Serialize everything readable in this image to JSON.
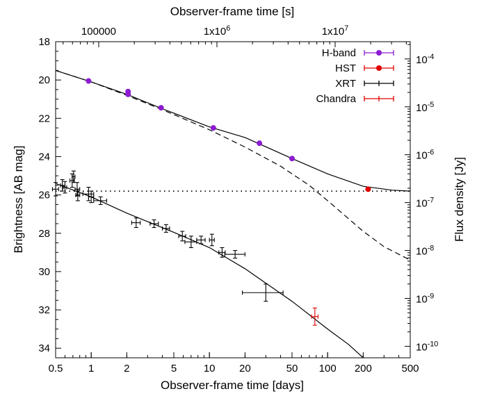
{
  "chart_data": {
    "type": "scatter",
    "top_axis_label": "Observer-frame time [s]",
    "xlabel": "Observer-frame time [days]",
    "ylabel": "Brightness [AB mag]",
    "y2label": "Flux density [Jy]",
    "xscale": "log",
    "xlim": [
      0.5,
      500
    ],
    "ylim": [
      34.5,
      18
    ],
    "x_ticks": [
      {
        "v": 0.5,
        "label": "0.5"
      },
      {
        "v": 1,
        "label": "1"
      },
      {
        "v": 2,
        "label": "2"
      },
      {
        "v": 5,
        "label": "5"
      },
      {
        "v": 10,
        "label": "10"
      },
      {
        "v": 20,
        "label": "20"
      },
      {
        "v": 50,
        "label": "50"
      },
      {
        "v": 100,
        "label": "100"
      },
      {
        "v": 200,
        "label": "200"
      },
      {
        "v": 500,
        "label": "500"
      }
    ],
    "top_ticks": [
      {
        "v": 100000,
        "label": "100000"
      },
      {
        "v": 1000000,
        "label": "1x10",
        "sup": "6"
      },
      {
        "v": 10000000,
        "label": "1x10",
        "sup": "7"
      }
    ],
    "y_ticks": [
      {
        "v": 18,
        "label": "18"
      },
      {
        "v": 20,
        "label": "20"
      },
      {
        "v": 22,
        "label": "22"
      },
      {
        "v": 24,
        "label": "24"
      },
      {
        "v": 26,
        "label": "26"
      },
      {
        "v": 28,
        "label": "28"
      },
      {
        "v": 30,
        "label": "30"
      },
      {
        "v": 32,
        "label": "32"
      },
      {
        "v": 34,
        "label": "34"
      }
    ],
    "y2_ticks": [
      {
        "jy": 0.0001,
        "label": "10",
        "sup": "-4"
      },
      {
        "jy": 1e-05,
        "label": "10",
        "sup": "-5"
      },
      {
        "jy": 1e-06,
        "label": "10",
        "sup": "-6"
      },
      {
        "jy": 1e-07,
        "label": "10",
        "sup": "-7"
      },
      {
        "jy": 1e-08,
        "label": "10",
        "sup": "-8"
      },
      {
        "jy": 1e-09,
        "label": "10",
        "sup": "-9"
      },
      {
        "jy": 1e-10,
        "label": "10",
        "sup": "-10"
      }
    ],
    "legend_position": "top-right",
    "series": [
      {
        "name": "H-band",
        "color": "#8c1bd1",
        "marker": "filled-circle",
        "points": [
          {
            "x": 0.95,
            "y": 20.05
          },
          {
            "x": 2.05,
            "y": 20.6
          },
          {
            "x": 2.05,
            "y": 20.75
          },
          {
            "x": 3.9,
            "y": 21.45
          },
          {
            "x": 10.8,
            "y": 22.5
          },
          {
            "x": 26.5,
            "y": 23.3
          },
          {
            "x": 50,
            "y": 24.1
          }
        ]
      },
      {
        "name": "HST",
        "color": "#e00000",
        "marker": "filled-circle",
        "points": [
          {
            "x": 220,
            "y": 25.7
          }
        ]
      },
      {
        "name": "XRT",
        "color": "#000000",
        "marker": "cross",
        "points": [
          {
            "x": 0.5,
            "y": 25.7,
            "xe": [
              0.47,
              0.53
            ],
            "ye": 0.35
          },
          {
            "x": 0.57,
            "y": 25.5,
            "xe": [
              0.55,
              0.6
            ],
            "ye": 0.3
          },
          {
            "x": 0.6,
            "y": 25.6,
            "xe": [
              0.58,
              0.62
            ],
            "ye": 0.3
          },
          {
            "x": 0.69,
            "y": 25.25,
            "xe": [
              0.66,
              0.72
            ],
            "ye": 0.35
          },
          {
            "x": 0.71,
            "y": 25.05,
            "xe": [
              0.69,
              0.73
            ],
            "ye": 0.3
          },
          {
            "x": 0.76,
            "y": 25.7,
            "xe": [
              0.73,
              0.8
            ],
            "ye": 0.35
          },
          {
            "x": 0.77,
            "y": 26.0,
            "xe": [
              0.74,
              0.8
            ],
            "ye": 0.3
          },
          {
            "x": 0.95,
            "y": 25.95,
            "xe": [
              0.85,
              1.05
            ],
            "ye": 0.35
          },
          {
            "x": 1.0,
            "y": 26.1,
            "xe": [
              0.95,
              1.05
            ],
            "ye": 0.3
          },
          {
            "x": 1.2,
            "y": 26.3,
            "xe": [
              1.05,
              1.35
            ],
            "ye": 0.2
          },
          {
            "x": 2.4,
            "y": 27.45,
            "xe": [
              2.2,
              2.6
            ],
            "ye": 0.25
          },
          {
            "x": 3.4,
            "y": 27.5,
            "xe": [
              3.15,
              3.7
            ],
            "ye": 0.2
          },
          {
            "x": 4.3,
            "y": 27.75,
            "xe": [
              4.0,
              4.6
            ],
            "ye": 0.2
          },
          {
            "x": 5.9,
            "y": 28.15,
            "xe": [
              5.5,
              6.3
            ],
            "ye": 0.25
          },
          {
            "x": 7.0,
            "y": 28.45,
            "xe": [
              6.2,
              7.8
            ],
            "ye": 0.3
          },
          {
            "x": 8.5,
            "y": 28.35,
            "xe": [
              7.8,
              9.2
            ],
            "ye": 0.2
          },
          {
            "x": 10.5,
            "y": 28.35,
            "xe": [
              10.0,
              11.0
            ],
            "ye": 0.3
          },
          {
            "x": 12.8,
            "y": 29.0,
            "xe": [
              12.0,
              13.6
            ],
            "ye": 0.25
          },
          {
            "x": 16.5,
            "y": 29.1,
            "xe": [
              13.5,
              20
            ],
            "ye": 0.2
          },
          {
            "x": 30,
            "y": 31.1,
            "xe": [
              19,
              42
            ],
            "ye": 0.45
          }
        ]
      },
      {
        "name": "Chandra",
        "color": "#e00000",
        "marker": "cross",
        "points": [
          {
            "x": 78,
            "y": 32.35,
            "xe": [
              73,
              83
            ],
            "ye": 0.45
          }
        ]
      }
    ],
    "models": [
      {
        "name": "optical model (solid)",
        "style": "solid",
        "points": [
          [
            0.5,
            19.5
          ],
          [
            1,
            20.1
          ],
          [
            2,
            20.75
          ],
          [
            4,
            21.5
          ],
          [
            10,
            22.45
          ],
          [
            20,
            23.0
          ],
          [
            50,
            24.1
          ],
          [
            100,
            24.9
          ],
          [
            200,
            25.55
          ],
          [
            350,
            25.75
          ],
          [
            500,
            25.8
          ]
        ]
      },
      {
        "name": "optical model without host (dashed)",
        "style": "dashed",
        "points": [
          [
            0.5,
            19.5
          ],
          [
            1,
            20.1
          ],
          [
            2,
            20.8
          ],
          [
            4,
            21.55
          ],
          [
            10,
            22.6
          ],
          [
            20,
            23.5
          ],
          [
            40,
            24.5
          ],
          [
            70,
            25.5
          ],
          [
            100,
            26.3
          ],
          [
            200,
            27.9
          ],
          [
            300,
            28.7
          ],
          [
            500,
            29.4
          ]
        ]
      },
      {
        "name": "X-ray model (solid)",
        "style": "solid",
        "points": [
          [
            0.5,
            25.4
          ],
          [
            1,
            26.1
          ],
          [
            2,
            26.95
          ],
          [
            5,
            27.95
          ],
          [
            10,
            28.75
          ],
          [
            20,
            29.85
          ],
          [
            50,
            31.55
          ],
          [
            100,
            33.0
          ],
          [
            150,
            33.8
          ],
          [
            200,
            34.5
          ]
        ]
      },
      {
        "name": "host level (dotted)",
        "style": "dotted",
        "points": [
          [
            0.5,
            25.8
          ],
          [
            500,
            25.8
          ]
        ]
      }
    ]
  }
}
